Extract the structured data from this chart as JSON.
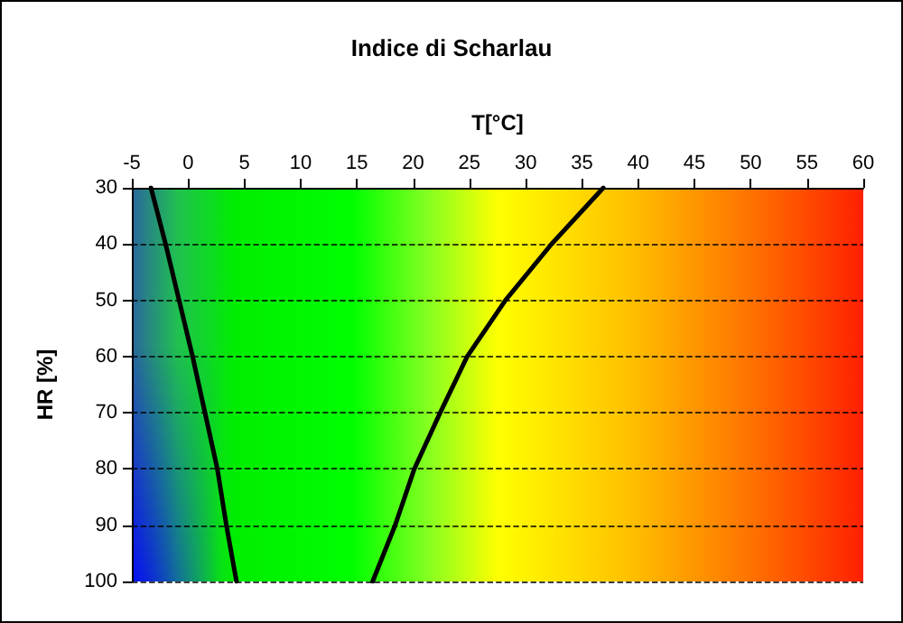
{
  "chart_data": {
    "type": "line",
    "title": "Indice di Scharlau",
    "xlabel": "T[°C]",
    "ylabel": "HR [%]",
    "xlim": [
      -5,
      60
    ],
    "xticks": [
      -5,
      0,
      5,
      10,
      15,
      20,
      25,
      30,
      35,
      40,
      45,
      50,
      55,
      60
    ],
    "ylim": [
      100,
      30
    ],
    "yticks": [
      30,
      40,
      50,
      60,
      70,
      80,
      90,
      100
    ],
    "grid": "y",
    "marker": "none",
    "line_style": "solid",
    "series": [
      {
        "color": "#000000",
        "x": [
          -3.3,
          -2.0,
          -0.8,
          0.4,
          1.5,
          2.6,
          3.4,
          4.3
        ],
        "values": [
          30,
          40,
          50,
          60,
          70,
          80,
          90,
          100
        ]
      },
      {
        "color": "#000000",
        "x": [
          36.9,
          32.3,
          28.2,
          24.8,
          22.4,
          20.1,
          18.4,
          16.4
        ],
        "values": [
          30,
          40,
          50,
          60,
          70,
          80,
          90,
          100
        ]
      }
    ]
  }
}
